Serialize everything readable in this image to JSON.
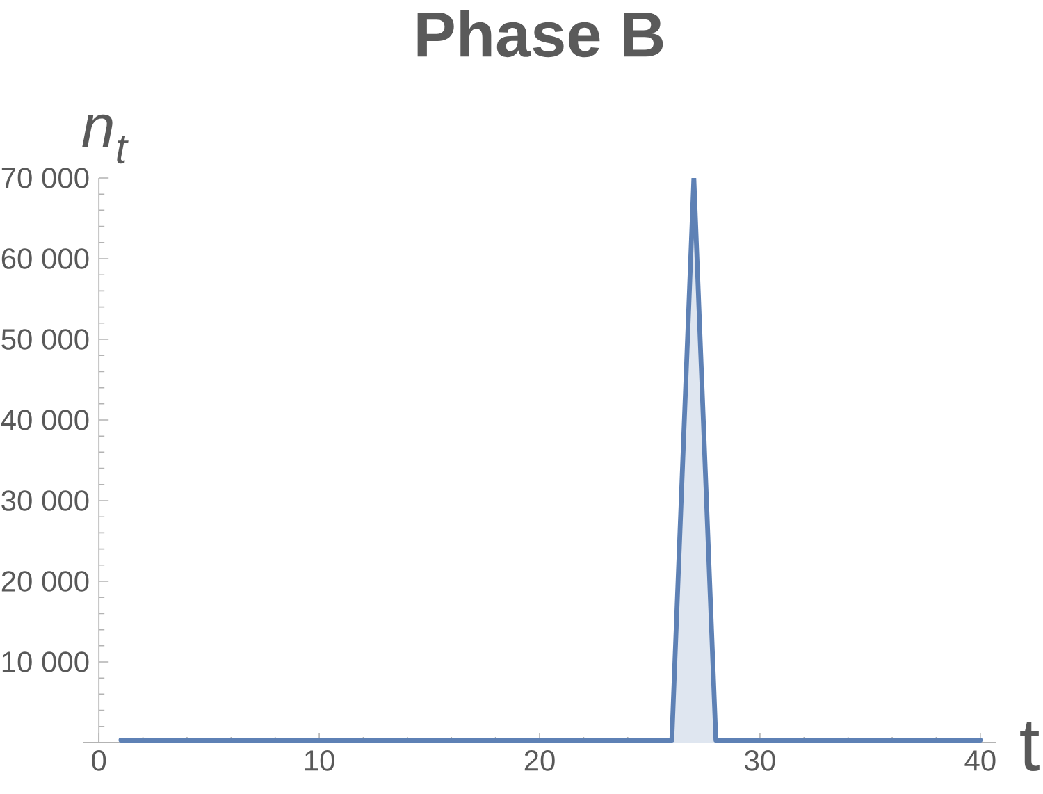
{
  "chart_data": {
    "type": "area",
    "title": "Phase B",
    "xlabel": "t",
    "ylabel": "n$_{t}$",
    "x": [
      1,
      2,
      3,
      4,
      5,
      6,
      7,
      8,
      9,
      10,
      11,
      12,
      13,
      14,
      15,
      16,
      17,
      18,
      19,
      20,
      21,
      22,
      23,
      24,
      25,
      26,
      27,
      28,
      29,
      30,
      31,
      32,
      33,
      34,
      35,
      36,
      37,
      38,
      39,
      40
    ],
    "series": [
      {
        "color": "#5e81b5",
        "values": [
          300,
          300,
          300,
          300,
          300,
          300,
          300,
          300,
          300,
          300,
          300,
          300,
          300,
          300,
          300,
          300,
          300,
          300,
          300,
          300,
          300,
          300,
          300,
          300,
          300,
          300,
          70000,
          300,
          300,
          300,
          300,
          300,
          300,
          300,
          300,
          300,
          300,
          300,
          300,
          300
        ]
      }
    ],
    "xlim": [
      -0.7,
      40.7
    ],
    "ylim": [
      0,
      70000
    ],
    "xticks": [
      0,
      10,
      20,
      30,
      40
    ],
    "yticks": [
      {
        "value": 10000,
        "label": "10 000"
      },
      {
        "value": 20000,
        "label": "20 000"
      },
      {
        "value": 30000,
        "label": "30 000"
      },
      {
        "value": 40000,
        "label": "40 000"
      },
      {
        "value": 50000,
        "label": "50 000"
      },
      {
        "value": 60000,
        "label": "60 000"
      },
      {
        "value": 70000,
        "label": "70 000"
      }
    ]
  }
}
